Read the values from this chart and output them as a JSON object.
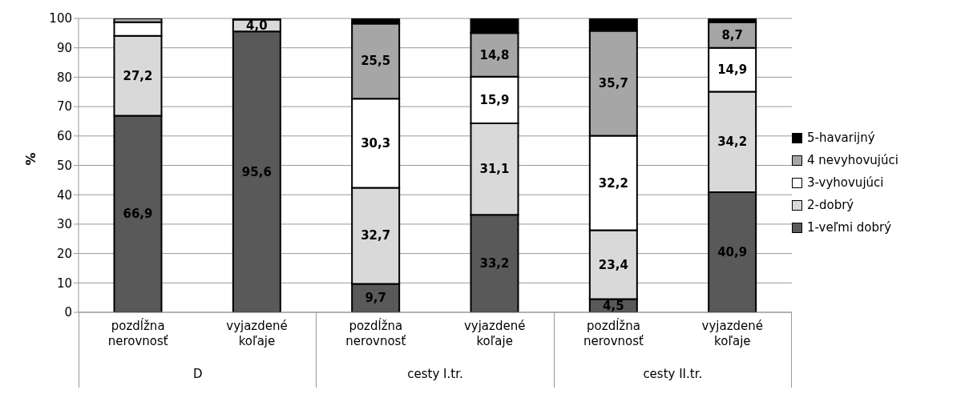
{
  "chart_data": {
    "type": "bar",
    "stacked": true,
    "ylabel": "%",
    "categories": [
      "pozdĺžna nerovnosť",
      "vyjazdené koľaje",
      "pozdĺžna nerovnosť",
      "vyjazdené koľaje",
      "pozdĺžna nerovnosť",
      "vyjazdené koľaje"
    ],
    "annotations": [
      "D",
      "cesty I.tr.",
      "cesty II.tr."
    ],
    "ylim": [
      0,
      100
    ],
    "yticks": [
      0,
      10,
      20,
      30,
      40,
      50,
      60,
      70,
      80,
      90,
      100
    ],
    "grid": "y",
    "legend": "right",
    "series": [
      {
        "name": "1-veľmi dobrý",
        "color": "#595959",
        "values": [
          66.9,
          95.6,
          9.7,
          33.2,
          4.5,
          40.9
        ],
        "value_labels": [
          "66,9",
          "95,6",
          "9,7",
          "33,2",
          "4,5",
          "40,9"
        ]
      },
      {
        "name": "2-dobrý",
        "color": "#d9d9d9",
        "values": [
          27.2,
          4.0,
          32.7,
          31.1,
          23.4,
          34.2
        ],
        "value_labels": [
          "27,2",
          "4,0",
          "32,7",
          "31,1",
          "23,4",
          "34,2"
        ]
      },
      {
        "name": "3-vyhovujúci",
        "color": "#ffffff",
        "values": [
          4.6,
          null,
          30.3,
          15.9,
          32.2,
          14.9
        ],
        "value_labels": [
          null,
          null,
          "30,3",
          "15,9",
          "32,2",
          "14,9"
        ]
      },
      {
        "name": "4 nevyhovujúci",
        "color": "#a6a6a6",
        "values": [
          1.3,
          null,
          25.5,
          14.8,
          35.7,
          8.7
        ],
        "value_labels": [
          null,
          null,
          "25,5",
          "14,8",
          "35,7",
          "8,7"
        ]
      },
      {
        "name": "5-havarijný",
        "color": "#000000",
        "values": [
          null,
          0.4,
          1.8,
          5.0,
          4.2,
          1.3
        ],
        "value_labels": [
          null,
          null,
          null,
          null,
          null,
          null
        ]
      }
    ]
  }
}
